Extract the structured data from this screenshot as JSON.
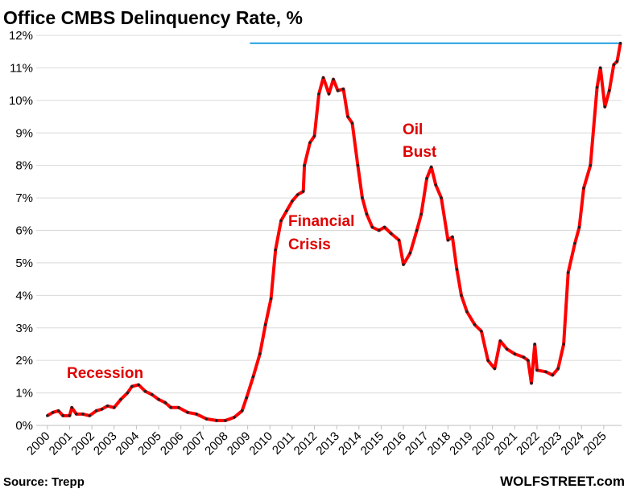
{
  "chart_data": {
    "type": "line",
    "title": "Office CMBS Delinquency Rate, %",
    "source": "Source: Trepp",
    "credit": "WOLFSTREET.com",
    "annotations": [
      "Recession",
      "Financial",
      "Crisis",
      "Oil",
      "Bust"
    ],
    "color": "#ff0000",
    "marker_color": "#222222",
    "x": [
      2000.0,
      2000.25,
      2000.5,
      2000.7,
      2001.0,
      2001.1,
      2001.3,
      2001.6,
      2001.9,
      2002.2,
      2002.45,
      2002.7,
      2003.0,
      2003.3,
      2003.6,
      2003.8,
      2004.1,
      2004.4,
      2004.7,
      2005.0,
      2005.3,
      2005.55,
      2005.9,
      2006.3,
      2006.7,
      2007.15,
      2007.6,
      2008.0,
      2008.4,
      2008.75,
      2008.95,
      2009.25,
      2009.55,
      2009.8,
      2010.05,
      2010.25,
      2010.5,
      2010.75,
      2011.0,
      2011.25,
      2011.5,
      2011.55,
      2011.8,
      2012.0,
      2012.2,
      2012.4,
      2012.65,
      2012.85,
      2013.05,
      2013.3,
      2013.5,
      2013.7,
      2013.95,
      2014.15,
      2014.35,
      2014.6,
      2014.9,
      2015.15,
      2015.45,
      2015.8,
      2016.0,
      2016.3,
      2016.6,
      2016.8,
      2017.05,
      2017.25,
      2017.45,
      2017.7,
      2018.0,
      2018.2,
      2018.4,
      2018.6,
      2018.85,
      2019.2,
      2019.5,
      2019.8,
      2020.1,
      2020.35,
      2020.65,
      2021.0,
      2021.4,
      2021.6,
      2021.75,
      2021.9,
      2022.0,
      2022.4,
      2022.7,
      2022.95,
      2023.2,
      2023.4,
      2023.7,
      2023.9,
      2024.1,
      2024.4,
      2024.7,
      2024.85,
      2025.05,
      2025.25,
      2025.45,
      2025.6,
      2025.75
    ],
    "values": [
      0.3,
      0.4,
      0.45,
      0.3,
      0.3,
      0.55,
      0.35,
      0.35,
      0.3,
      0.45,
      0.5,
      0.6,
      0.55,
      0.8,
      1.0,
      1.2,
      1.25,
      1.05,
      0.95,
      0.8,
      0.7,
      0.55,
      0.55,
      0.4,
      0.35,
      0.2,
      0.15,
      0.15,
      0.25,
      0.45,
      0.85,
      1.5,
      2.2,
      3.1,
      3.9,
      5.4,
      6.3,
      6.6,
      6.9,
      7.1,
      7.2,
      8.0,
      8.7,
      8.9,
      10.2,
      10.7,
      10.2,
      10.65,
      10.3,
      10.35,
      9.5,
      9.3,
      8.0,
      7.0,
      6.5,
      6.1,
      6.0,
      6.1,
      5.9,
      5.7,
      4.95,
      5.3,
      6.0,
      6.5,
      7.6,
      7.95,
      7.4,
      7.0,
      5.7,
      5.8,
      4.8,
      4.0,
      3.5,
      3.1,
      2.9,
      2.0,
      1.75,
      2.6,
      2.35,
      2.2,
      2.1,
      2.0,
      1.3,
      2.5,
      1.7,
      1.65,
      1.55,
      1.75,
      2.5,
      4.7,
      5.6,
      6.1,
      7.3,
      8.0,
      10.4,
      11.0,
      9.8,
      10.3,
      11.1,
      11.2,
      11.76
    ],
    "reference_line": {
      "value": 11.76,
      "x_start": 2009.1,
      "color": "#1f9fe0"
    },
    "xlim": [
      1999.5,
      2025.8
    ],
    "xticks": [
      2000,
      2001,
      2002,
      2003,
      2004,
      2005,
      2006,
      2007,
      2008,
      2009,
      2010,
      2011,
      2012,
      2013,
      2014,
      2015,
      2016,
      2017,
      2018,
      2019,
      2020,
      2021,
      2022,
      2023,
      2024,
      2025
    ],
    "ylim": [
      0,
      12
    ],
    "yticks": [
      {
        "value": 0,
        "label": "0%"
      },
      {
        "value": 1,
        "label": "1%"
      },
      {
        "value": 2,
        "label": "2%"
      },
      {
        "value": 3,
        "label": "3%"
      },
      {
        "value": 4,
        "label": "4%"
      },
      {
        "value": 5,
        "label": "5%"
      },
      {
        "value": 6,
        "label": "6%"
      },
      {
        "value": 7,
        "label": "7%"
      },
      {
        "value": 8,
        "label": "8%"
      },
      {
        "value": 9,
        "label": "9%"
      },
      {
        "value": 10,
        "label": "10%"
      },
      {
        "value": 11,
        "label": "11%"
      },
      {
        "value": 12,
        "label": "12%"
      }
    ],
    "grid": true
  }
}
